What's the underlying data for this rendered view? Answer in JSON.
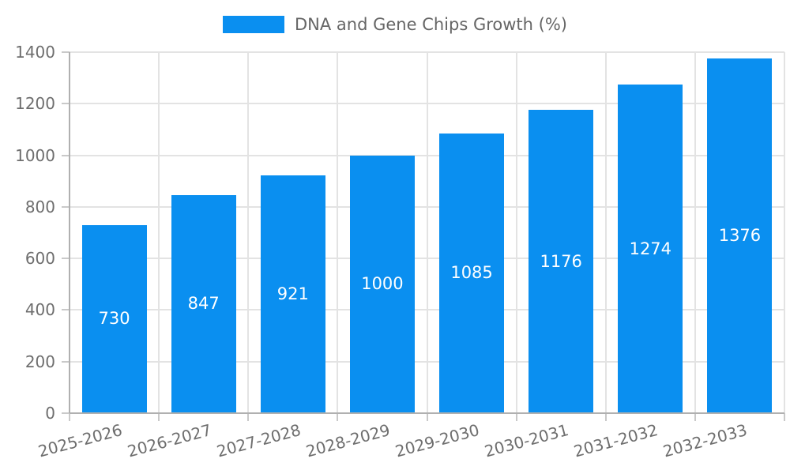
{
  "legend": {
    "label": "DNA and Gene Chips Growth (%)"
  },
  "chart_data": {
    "type": "bar",
    "title": "DNA and Gene Chips Growth (%)",
    "categories": [
      "2025-2026",
      "2026-2027",
      "2027-2028",
      "2028-2029",
      "2029-2030",
      "2030-2031",
      "2031-2032",
      "2032-2033"
    ],
    "values": [
      730,
      847,
      921,
      1000,
      1085,
      1176,
      1274,
      1376
    ],
    "xlabel": "",
    "ylabel": "",
    "ylim": [
      0,
      1400
    ],
    "yticks": [
      0,
      200,
      400,
      600,
      800,
      1000,
      1200,
      1400
    ],
    "grid": true,
    "legend_position": "top-center",
    "value_labels": "inside-center",
    "bar_color": "#0a8ff0",
    "value_label_color": "#ffffff",
    "axis_text_color": "#6e6e6e",
    "legend_text_color": "#666666",
    "gridline_color": "#e3e3e3",
    "axis_line_color": "#b0b0b0",
    "tick_color": "#c9c9c9"
  }
}
